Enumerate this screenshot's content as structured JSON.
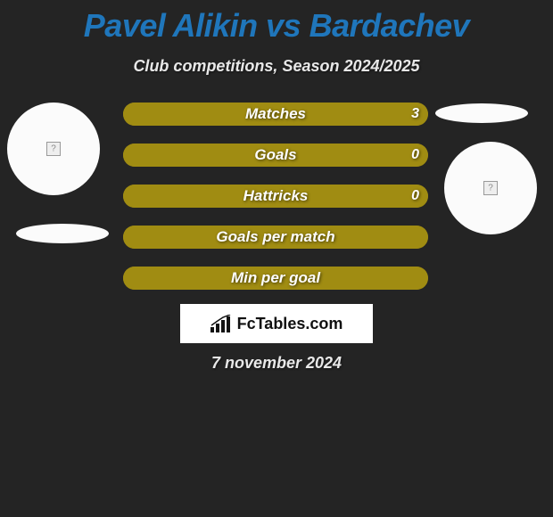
{
  "title": "Pavel Alikin vs Bardachev",
  "subtitle": "Club competitions, Season 2024/2025",
  "date": "7 november 2024",
  "logo_text": "FcTables.com",
  "colors": {
    "background": "#242424",
    "title": "#1f76bb",
    "text": "#e8e8e8",
    "bar_left": "#9a8a13",
    "bar_right": "#a58f10",
    "bar_full": "#a08c12",
    "player_circle": "#fbfbfb",
    "logo_bg": "#ffffff"
  },
  "bars": [
    {
      "label": "Matches",
      "left_value": "",
      "right_value": "3",
      "left_pct": 0,
      "right_pct": 100,
      "left_color": "#9a8a13",
      "right_color": "#a08c12"
    },
    {
      "label": "Goals",
      "left_value": "",
      "right_value": "0",
      "left_pct": 0,
      "right_pct": 100,
      "left_color": "#9a8a13",
      "right_color": "#a08c12"
    },
    {
      "label": "Hattricks",
      "left_value": "",
      "right_value": "0",
      "left_pct": 0,
      "right_pct": 100,
      "left_color": "#9a8a13",
      "right_color": "#a08c12"
    },
    {
      "label": "Goals per match",
      "left_value": "",
      "right_value": "",
      "left_pct": 0,
      "right_pct": 100,
      "left_color": "#9a8a13",
      "right_color": "#a08c12"
    },
    {
      "label": "Min per goal",
      "left_value": "",
      "right_value": "",
      "left_pct": 0,
      "right_pct": 100,
      "left_color": "#9a8a13",
      "right_color": "#a08c12"
    }
  ]
}
